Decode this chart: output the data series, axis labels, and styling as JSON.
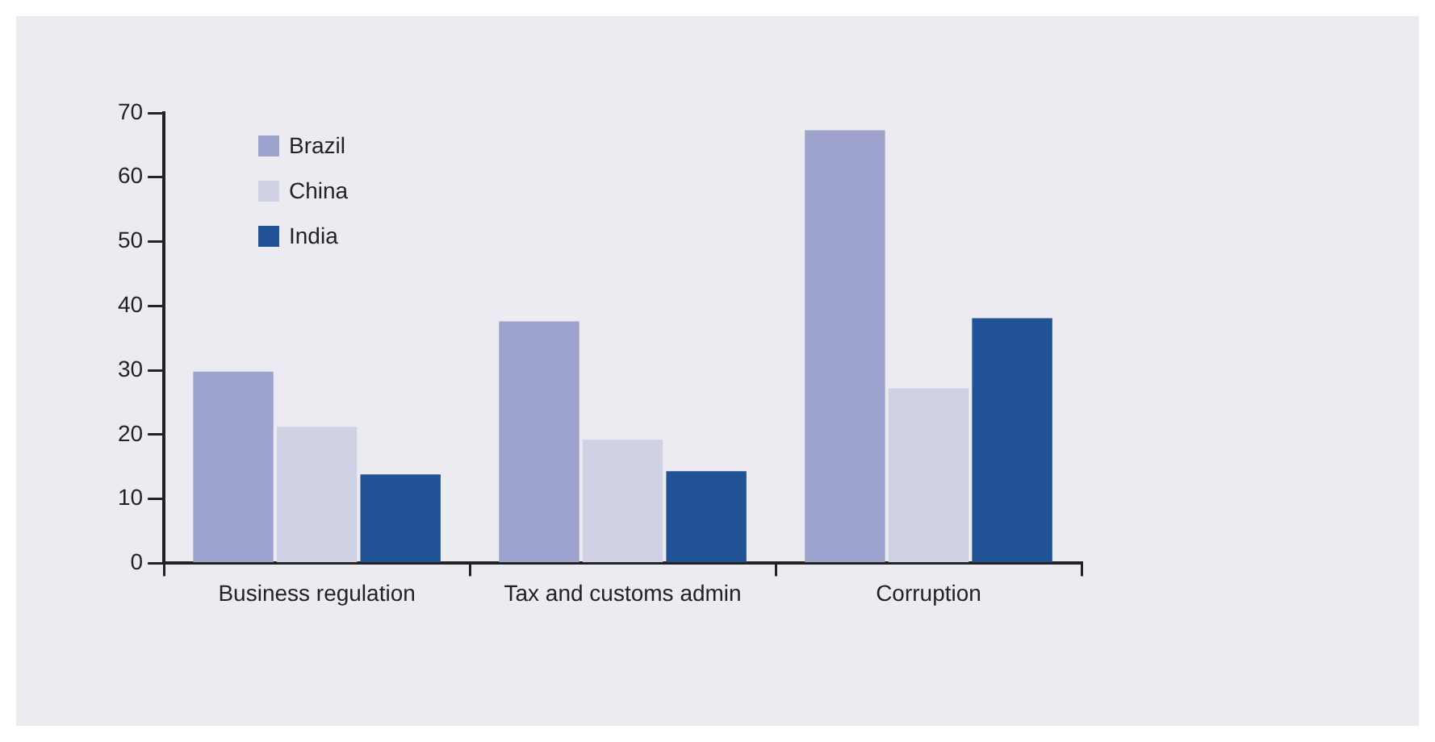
{
  "chart_data": {
    "type": "bar",
    "categories": [
      "Business regulation",
      "Tax and customs admin",
      "Corruption"
    ],
    "series": [
      {
        "name": "Brazil",
        "color": "#9ea3cd",
        "values": [
          29.8,
          37.6,
          67.3
        ]
      },
      {
        "name": "China",
        "color": "#d0d1e5",
        "values": [
          21.2,
          19.2,
          27.2
        ]
      },
      {
        "name": "India",
        "color": "#225296",
        "values": [
          13.8,
          14.3,
          38.1
        ]
      }
    ],
    "ylim": [
      0,
      70
    ],
    "yticks": [
      0,
      10,
      20,
      30,
      40,
      50,
      60,
      70
    ],
    "grid": false,
    "legend": "top left"
  }
}
